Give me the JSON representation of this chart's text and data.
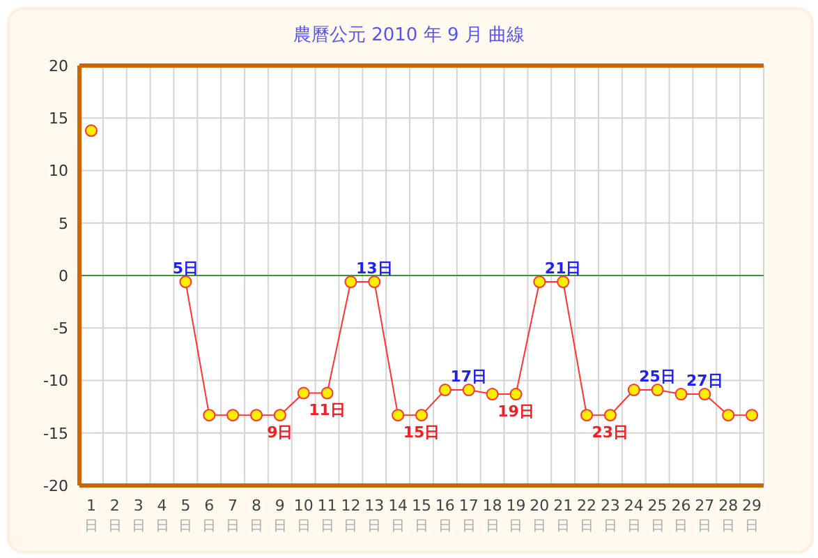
{
  "chart_data": {
    "type": "line",
    "title": "農曆公元 2010 年 9 月 曲線",
    "categories": [
      "1日",
      "2日",
      "3日",
      "4日",
      "5日",
      "6日",
      "7日",
      "8日",
      "9日",
      "10日",
      "11日",
      "12日",
      "13日",
      "14日",
      "15日",
      "16日",
      "17日",
      "18日",
      "19日",
      "20日",
      "21日",
      "22日",
      "23日",
      "24日",
      "25日",
      "26日",
      "27日",
      "28日",
      "29日"
    ],
    "series": [
      {
        "color": "#ff3333",
        "values": [
          13.8,
          null,
          null,
          null,
          -0.6,
          -13.3,
          -13.3,
          -13.3,
          -13.3,
          -11.2,
          -11.2,
          -0.6,
          -0.6,
          -13.3,
          -13.3,
          -10.9,
          -10.9,
          -11.3,
          -11.3,
          -0.6,
          -0.6,
          -13.3,
          -13.3,
          -10.9,
          -10.9,
          -11.3,
          -11.3,
          -13.3,
          -13.3
        ]
      }
    ],
    "ylim": [
      -20,
      20
    ],
    "yticks": [
      -20,
      -15,
      -10,
      -5,
      0,
      5,
      10,
      15,
      20
    ],
    "ref_lines": [
      {
        "axis": "y",
        "value": 0,
        "color": "#339933"
      }
    ],
    "annotations": [
      {
        "text": "5日",
        "x": "5日",
        "y": -0.6
      },
      {
        "text": "9日",
        "x": "9日",
        "y": -13.3
      },
      {
        "text": "11日",
        "x": "11日",
        "y": -11.2
      },
      {
        "text": "13日",
        "x": "13日",
        "y": -0.6
      },
      {
        "text": "15日",
        "x": "15日",
        "y": -13.3
      },
      {
        "text": "17日",
        "x": "17日",
        "y": -10.9
      },
      {
        "text": "19日",
        "x": "19日",
        "y": -11.3
      },
      {
        "text": "21日",
        "x": "21日",
        "y": -0.6
      },
      {
        "text": "23日",
        "x": "23日",
        "y": -13.3
      },
      {
        "text": "25日",
        "x": "25日",
        "y": -10.9
      },
      {
        "text": "27日",
        "x": "27日",
        "y": -11.3
      }
    ],
    "grid": true,
    "legend": false,
    "marker": "circle",
    "line_style": "solid"
  }
}
